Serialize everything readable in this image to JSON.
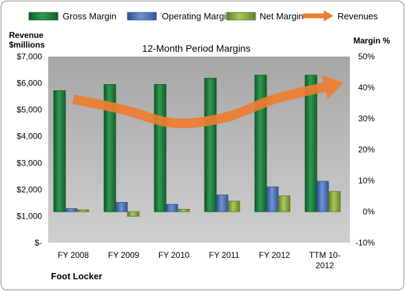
{
  "chart_data": {
    "type": "bar",
    "title": "12-Month Period Margins",
    "company_label": "Foot Locker",
    "left_axis": {
      "title_line1": "Revenue",
      "title_line2": "$millions",
      "min": 0,
      "max": 7000,
      "ticks": [
        {
          "value": 0,
          "label": "$-"
        },
        {
          "value": 1000,
          "label": "$1,000"
        },
        {
          "value": 2000,
          "label": "$2,000"
        },
        {
          "value": 3000,
          "label": "$3,000"
        },
        {
          "value": 4000,
          "label": "$4,000"
        },
        {
          "value": 5000,
          "label": "$5,000"
        },
        {
          "value": 6000,
          "label": "$6,000"
        },
        {
          "value": 7000,
          "label": "$7,000"
        }
      ]
    },
    "right_axis": {
      "title": "Margin %",
      "min": -10,
      "max": 50,
      "ticks": [
        {
          "value": -10,
          "label": "-10%"
        },
        {
          "value": 0,
          "label": "0%"
        },
        {
          "value": 10,
          "label": "10%"
        },
        {
          "value": 20,
          "label": "20%"
        },
        {
          "value": 30,
          "label": "30%"
        },
        {
          "value": 40,
          "label": "40%"
        },
        {
          "value": 50,
          "label": "50%"
        }
      ]
    },
    "categories": [
      {
        "line1": "FY 2008",
        "line2": ""
      },
      {
        "line1": "FY 2009",
        "line2": ""
      },
      {
        "line1": "FY 2010",
        "line2": ""
      },
      {
        "line1": "FY 2011",
        "line2": ""
      },
      {
        "line1": "FY 2012",
        "line2": ""
      },
      {
        "line1": "TTM 10-",
        "line2": "2012"
      }
    ],
    "series": [
      {
        "name": "Gross Margin",
        "axis": "right",
        "color": "#1e7d3c",
        "values": [
          39,
          41,
          41,
          43,
          44,
          44
        ]
      },
      {
        "name": "Operating Margin",
        "axis": "right",
        "color": "#4a6fb0",
        "values": [
          1.0,
          3.0,
          2.4,
          5.4,
          8.0,
          9.8
        ]
      },
      {
        "name": "Net Margin",
        "axis": "right",
        "color": "#86a83e",
        "values": [
          0.6,
          -1.5,
          0.8,
          3.4,
          5.1,
          6.5
        ]
      },
      {
        "name": "Revenues",
        "axis": "left",
        "type": "line",
        "color": "#ed7d31",
        "values": [
          5400,
          5000,
          4500,
          4700,
          5400,
          5850
        ]
      }
    ],
    "legend_position": "top"
  }
}
